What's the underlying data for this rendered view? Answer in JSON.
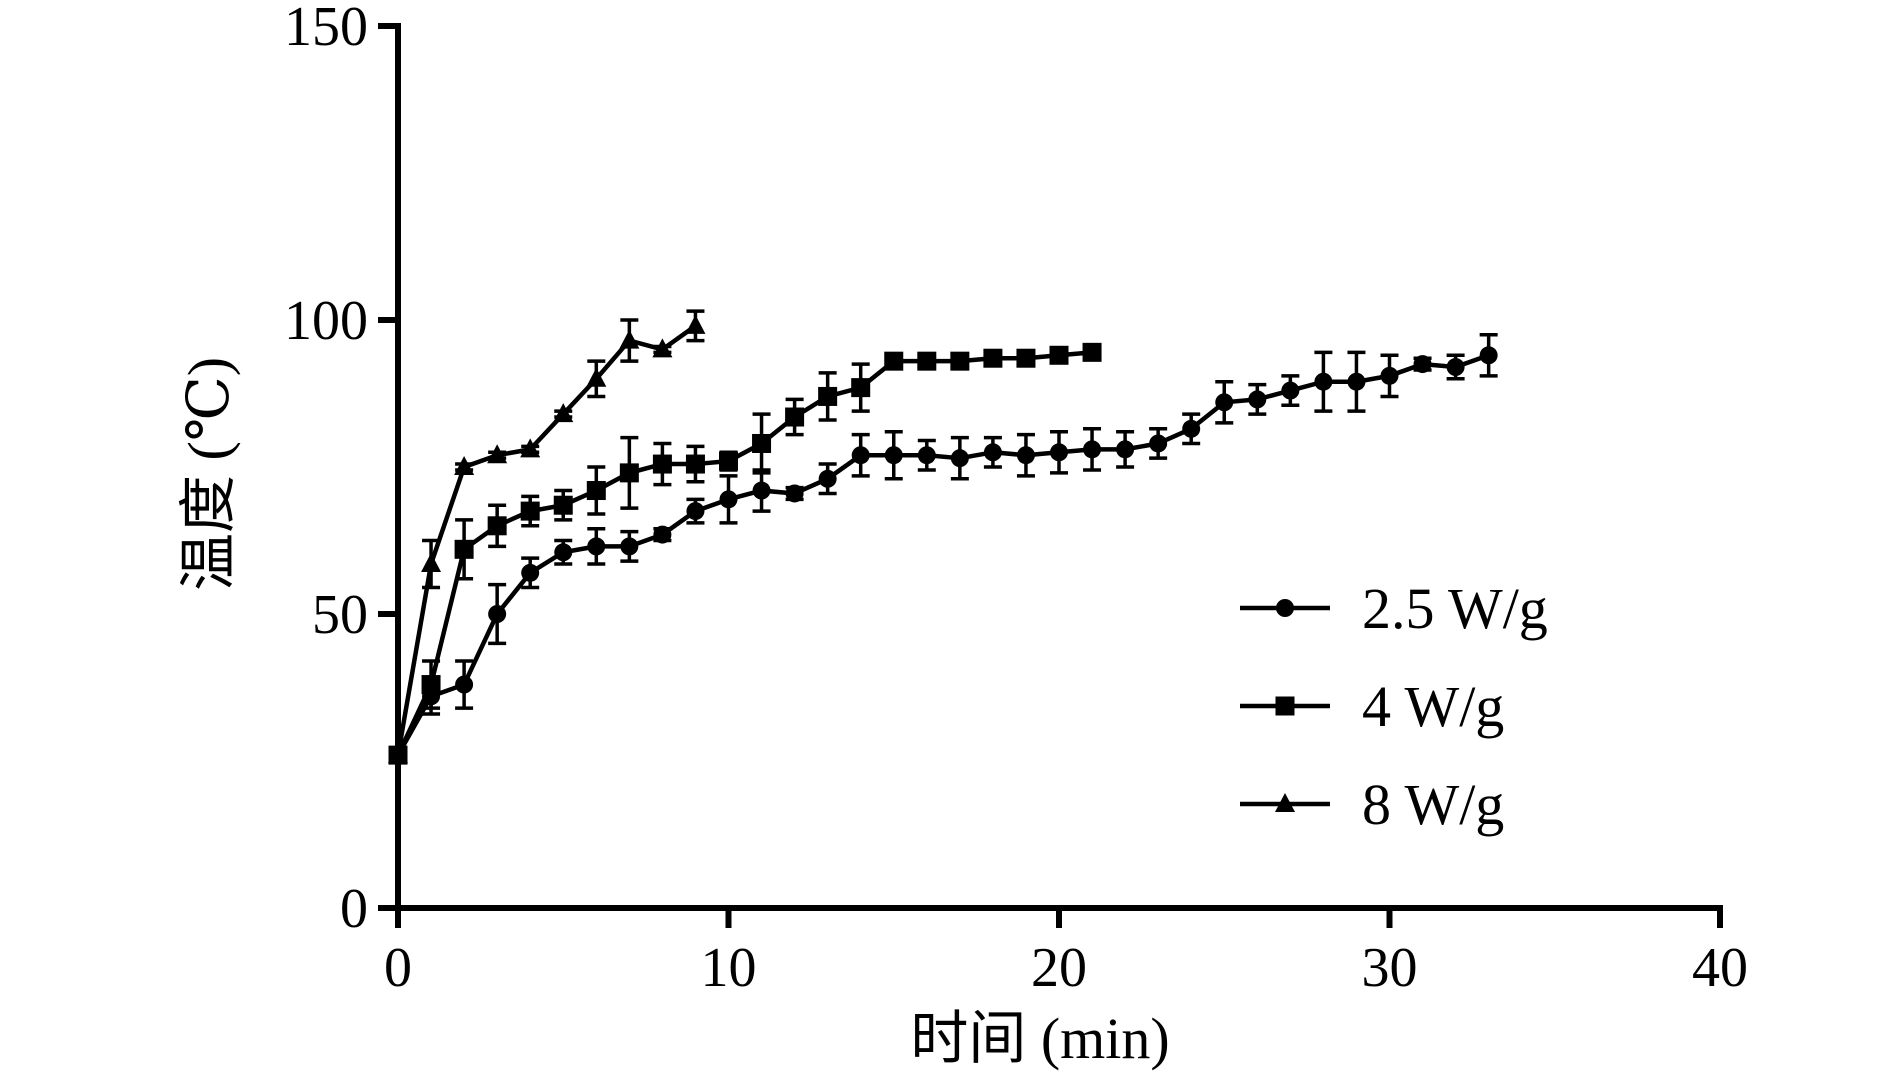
{
  "chart_data": {
    "type": "line",
    "xlabel": "时间 (min)",
    "ylabel": "温度 (℃)",
    "xlim": [
      0,
      40
    ],
    "ylim": [
      0,
      150
    ],
    "x_ticks": [
      0,
      10,
      20,
      30,
      40
    ],
    "y_ticks": [
      0,
      50,
      100,
      150
    ],
    "grid": false,
    "legend_position": "right",
    "series": [
      {
        "name": "2.5 W/g",
        "marker": "circle",
        "x": [
          0,
          1,
          2,
          3,
          4,
          5,
          6,
          7,
          8,
          9,
          10,
          11,
          12,
          13,
          14,
          15,
          16,
          17,
          18,
          19,
          20,
          21,
          22,
          23,
          24,
          25,
          26,
          27,
          28,
          29,
          30,
          31,
          32,
          33
        ],
        "y": [
          26,
          36,
          38,
          50,
          57,
          60.5,
          61.5,
          61.5,
          63.5,
          67.5,
          69.5,
          71,
          70.5,
          73,
          77,
          77,
          77,
          76.5,
          77.5,
          77,
          77.5,
          78,
          78,
          79,
          81.5,
          86,
          86.5,
          88,
          89.5,
          89.5,
          90.5,
          92.5,
          92,
          94
        ],
        "err": [
          0,
          3,
          4,
          5,
          2.5,
          2,
          3,
          2.5,
          1,
          2,
          4,
          3.5,
          1,
          2.5,
          3.5,
          4,
          2.5,
          3.5,
          2.5,
          3.5,
          3.5,
          3.5,
          3,
          2.5,
          2.5,
          3.5,
          2.5,
          2.5,
          5,
          5,
          3.5,
          1,
          2,
          3.5
        ]
      },
      {
        "name": "4 W/g",
        "marker": "square",
        "x": [
          0,
          1,
          2,
          3,
          4,
          5,
          6,
          7,
          8,
          9,
          10,
          11,
          12,
          13,
          14,
          15,
          16,
          17,
          18,
          19,
          20,
          21
        ],
        "y": [
          26,
          38,
          61,
          65,
          67.5,
          68.5,
          71,
          74,
          75.5,
          75.5,
          76,
          79,
          83.5,
          87,
          88.5,
          93,
          93,
          93,
          93.5,
          93.5,
          94,
          94.5
        ],
        "err": [
          0,
          4,
          5,
          3.5,
          2.5,
          2.5,
          4,
          6,
          3.5,
          3,
          1.5,
          5,
          3,
          4,
          4,
          1,
          0.5,
          0.5,
          0.5,
          0.5,
          0.5,
          0.5
        ]
      },
      {
        "name": "8 W/g",
        "marker": "triangle",
        "x": [
          0,
          1,
          2,
          3,
          4,
          5,
          6,
          7,
          8,
          9
        ],
        "y": [
          26,
          58.5,
          75,
          77,
          78,
          84,
          90,
          96.5,
          95,
          99
        ],
        "err": [
          0,
          4,
          0.5,
          0.5,
          0.5,
          0.5,
          3,
          3.5,
          0.5,
          2.5
        ]
      }
    ]
  }
}
